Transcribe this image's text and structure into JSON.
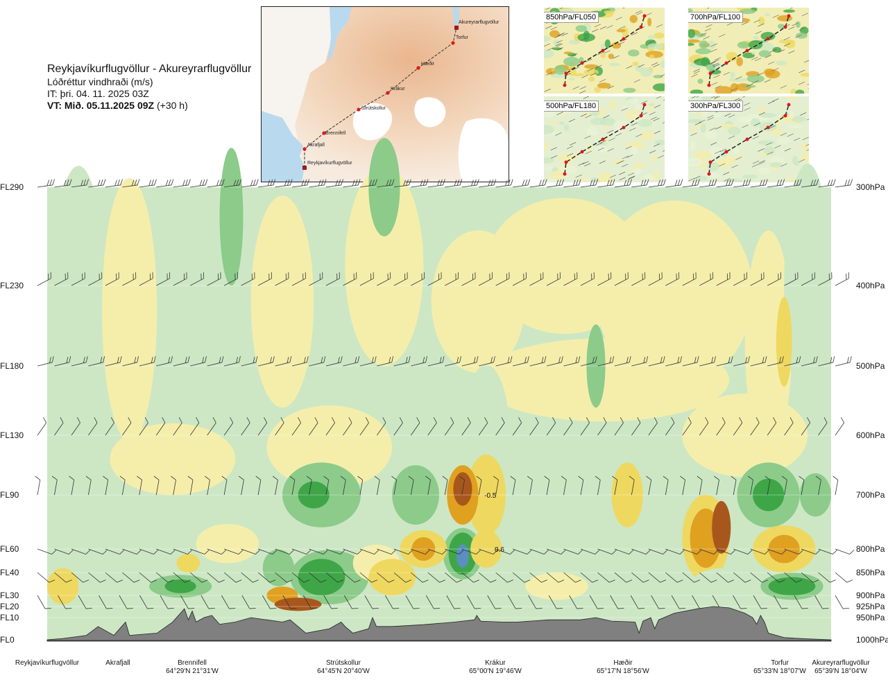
{
  "header": {
    "route": "Reykjavíkurflugvöllur - Akureyrarflugvöllur",
    "variable": "Lóðréttur vindhraði (m/s)",
    "issue_time": "IT: þri. 04. 11. 2025 03Z",
    "valid_prefix": "VT: Mið. 05.11.2025 09Z",
    "valid_suffix": " (+30 h)"
  },
  "map": {
    "places": [
      "Akureyrarflugvöllur",
      "Torfur",
      "Hæðir",
      "Krákur",
      "Strútskollur",
      "Brennifell",
      "Akrafjall",
      "Reykjavíkurflugvöllur"
    ]
  },
  "thumbnails": [
    {
      "label": "850hPa/FL050"
    },
    {
      "label": "700hPa/FL100"
    },
    {
      "label": "500hPa/FL180"
    },
    {
      "label": "300hPa/FL300"
    }
  ],
  "chart_data": {
    "type": "heatmap",
    "xlabel": "",
    "ylabel": "",
    "left_axis_ticks": [
      "FL290",
      "FL230",
      "FL180",
      "FL130",
      "FL90",
      "FL60",
      "FL40",
      "FL30",
      "FL20",
      "FL10",
      "FL0"
    ],
    "right_axis_ticks": [
      "300hPa",
      "400hPa",
      "500hPa",
      "600hPa",
      "700hPa",
      "800hPa",
      "850hPa",
      "900hPa",
      "925hPa",
      "950hPa",
      "1000hPa"
    ],
    "pressure_levels_hPa": [
      300,
      400,
      500,
      600,
      700,
      800,
      850,
      900,
      925,
      950,
      1000
    ],
    "locations": [
      {
        "name": "Reykjavíkurflugvöllur",
        "coord": "",
        "pos": 0.0
      },
      {
        "name": "Akrafjall",
        "coord": "",
        "pos": 0.06
      },
      {
        "name": "Brennifell",
        "coord": "64°29'N 21°31'W",
        "pos": 0.17
      },
      {
        "name": "Strútskollur",
        "coord": "64°45'N 20°40'W",
        "pos": 0.38
      },
      {
        "name": "Krákur",
        "coord": "65°00'N 19°46'W",
        "pos": 0.57
      },
      {
        "name": "Hæðir",
        "coord": "65°17'N 18°56'W",
        "pos": 0.76
      },
      {
        "name": "Torfur",
        "coord": "65°33'N 18°07'W",
        "pos": 0.94
      },
      {
        "name": "Akureyrarflugvöllur",
        "coord": "65°39'N 18°04'W",
        "pos": 1.0
      }
    ],
    "contour_labels": [
      {
        "text": "-0.5",
        "pos": 0.524,
        "level_hPa": 700
      },
      {
        "text": "0.6",
        "pos": 0.531,
        "level_hPa": 800
      }
    ],
    "colors": {
      "down_strong": "#a8571c",
      "down_mod": "#e0a020",
      "down_weak": "#eed860",
      "down_slight": "#f5eeab",
      "neutral": "#fbfbf0",
      "up_slight": "#e8f3d8",
      "up_weak": "#cde7c5",
      "up_mod": "#8ccb8a",
      "up_strong": "#3ea647",
      "up_vstrong": "#1a8a30",
      "up_extreme": "#5a8fc0",
      "terrain": "#808080"
    }
  }
}
